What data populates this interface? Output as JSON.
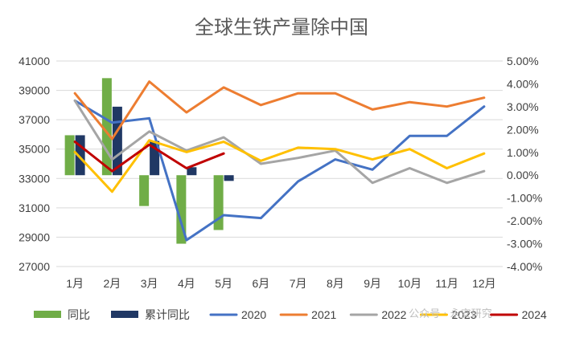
{
  "chart_data": {
    "type": "bar+line",
    "title": "全球生铁产量除中国",
    "categories": [
      "1月",
      "2月",
      "3月",
      "4月",
      "5月",
      "6月",
      "7月",
      "8月",
      "9月",
      "10月",
      "11月",
      "12月"
    ],
    "y_left": {
      "min": 27000,
      "max": 41000,
      "step": 2000,
      "ticks": [
        "27000",
        "29000",
        "31000",
        "33000",
        "35000",
        "37000",
        "39000",
        "41000"
      ]
    },
    "y_right": {
      "min": -4.0,
      "max": 5.0,
      "step": 1.0,
      "ticks": [
        "-4.00%",
        "-3.00%",
        "-2.00%",
        "-1.00%",
        "0.00%",
        "1.00%",
        "2.00%",
        "3.00%",
        "4.00%",
        "5.00%"
      ]
    },
    "grid": true,
    "legend_position": "bottom",
    "bar_series": [
      {
        "name": "同比",
        "color": "#70ad47",
        "axis": "right",
        "values": [
          1.75,
          4.25,
          -1.35,
          -3.0,
          -2.4,
          null,
          null,
          null,
          null,
          null,
          null,
          null
        ]
      },
      {
        "name": "累计同比",
        "color": "#203864",
        "axis": "right",
        "values": [
          1.75,
          3.0,
          1.5,
          0.35,
          -0.25,
          null,
          null,
          null,
          null,
          null,
          null,
          null
        ]
      }
    ],
    "line_series": [
      {
        "name": "2020",
        "color": "#4472c4",
        "axis": "left",
        "values": [
          38300,
          36800,
          37100,
          28800,
          30500,
          30300,
          32800,
          34300,
          33600,
          35900,
          35900,
          37900
        ]
      },
      {
        "name": "2021",
        "color": "#ed7d31",
        "axis": "left",
        "values": [
          38800,
          35700,
          39600,
          37500,
          39200,
          38000,
          38800,
          38800,
          37700,
          38200,
          37900,
          38500
        ]
      },
      {
        "name": "2022",
        "color": "#a5a5a5",
        "axis": "left",
        "values": [
          38300,
          34300,
          36200,
          34900,
          35800,
          34000,
          34400,
          34900,
          32700,
          33700,
          32700,
          33500
        ]
      },
      {
        "name": "2023",
        "color": "#ffc000",
        "axis": "left",
        "values": [
          34800,
          32100,
          35600,
          34800,
          35500,
          34200,
          35100,
          35000,
          34300,
          35000,
          33700,
          34700
        ]
      },
      {
        "name": "2024",
        "color": "#c00000",
        "axis": "left",
        "values": [
          35500,
          33500,
          35300,
          33700,
          34700,
          null,
          null,
          null,
          null,
          null,
          null,
          null
        ]
      }
    ],
    "watermark": "公众号 · 永安研究"
  }
}
